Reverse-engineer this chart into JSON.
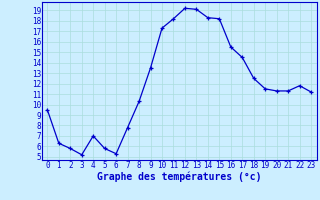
{
  "x": [
    0,
    1,
    2,
    3,
    4,
    5,
    6,
    7,
    8,
    9,
    10,
    11,
    12,
    13,
    14,
    15,
    16,
    17,
    18,
    19,
    20,
    21,
    22,
    23
  ],
  "y": [
    9.5,
    6.3,
    5.8,
    5.2,
    7.0,
    5.8,
    5.3,
    7.8,
    10.3,
    13.5,
    17.3,
    18.2,
    19.2,
    19.1,
    18.3,
    18.2,
    15.5,
    14.5,
    12.5,
    11.5,
    11.3,
    11.3,
    11.8,
    11.2
  ],
  "line_color": "#0000cc",
  "marker": "+",
  "bg_color": "#cceeff",
  "grid_color": "#aadddd",
  "xlabel": "Graphe des températures (°c)",
  "xlabel_color": "#0000cc",
  "tick_color": "#0000cc",
  "spine_color": "#0000cc",
  "ylabel_values": [
    5,
    6,
    7,
    8,
    9,
    10,
    11,
    12,
    13,
    14,
    15,
    16,
    17,
    18,
    19
  ],
  "ylim": [
    4.7,
    19.8
  ],
  "xlim": [
    -0.5,
    23.5
  ],
  "tick_fontsize": 5.5,
  "xlabel_fontsize": 7.0
}
